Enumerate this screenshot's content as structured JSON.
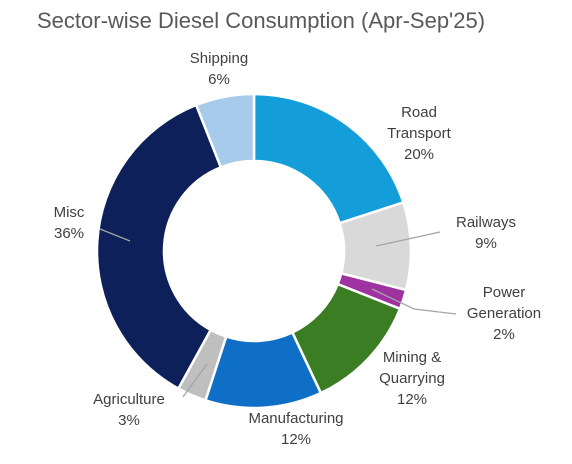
{
  "chart_data": {
    "type": "donut",
    "title": "Sector-wise Diesel Consumption (Apr-Sep'25)",
    "legend": "none",
    "slices": [
      {
        "name": "Road Transport",
        "label_lines": [
          "Road",
          "Transport"
        ],
        "value": 20,
        "value_label": "20%",
        "color": "#139ED9"
      },
      {
        "name": "Railways",
        "label_lines": [
          "Railways"
        ],
        "value": 9,
        "value_label": "9%",
        "color": "#D9D9D9"
      },
      {
        "name": "Power Generation",
        "label_lines": [
          "Power",
          "Generation"
        ],
        "value": 2,
        "value_label": "2%",
        "color": "#9E32A0"
      },
      {
        "name": "Mining & Quarrying",
        "label_lines": [
          "Mining &",
          "Quarrying"
        ],
        "value": 12,
        "value_label": "12%",
        "color": "#3B7D23"
      },
      {
        "name": "Manufacturing",
        "label_lines": [
          "Manufacturing"
        ],
        "value": 12,
        "value_label": "12%",
        "color": "#0F6FC6"
      },
      {
        "name": "Agriculture",
        "label_lines": [
          "Agriculture"
        ],
        "value": 3,
        "value_label": "3%",
        "color": "#BFBFBF"
      },
      {
        "name": "Misc",
        "label_lines": [
          "Misc"
        ],
        "value": 36,
        "value_label": "36%",
        "color": "#0E2059"
      },
      {
        "name": "Shipping",
        "label_lines": [
          "Shipping"
        ],
        "value": 6,
        "value_label": "6%",
        "color": "#A7CBEB"
      }
    ]
  }
}
